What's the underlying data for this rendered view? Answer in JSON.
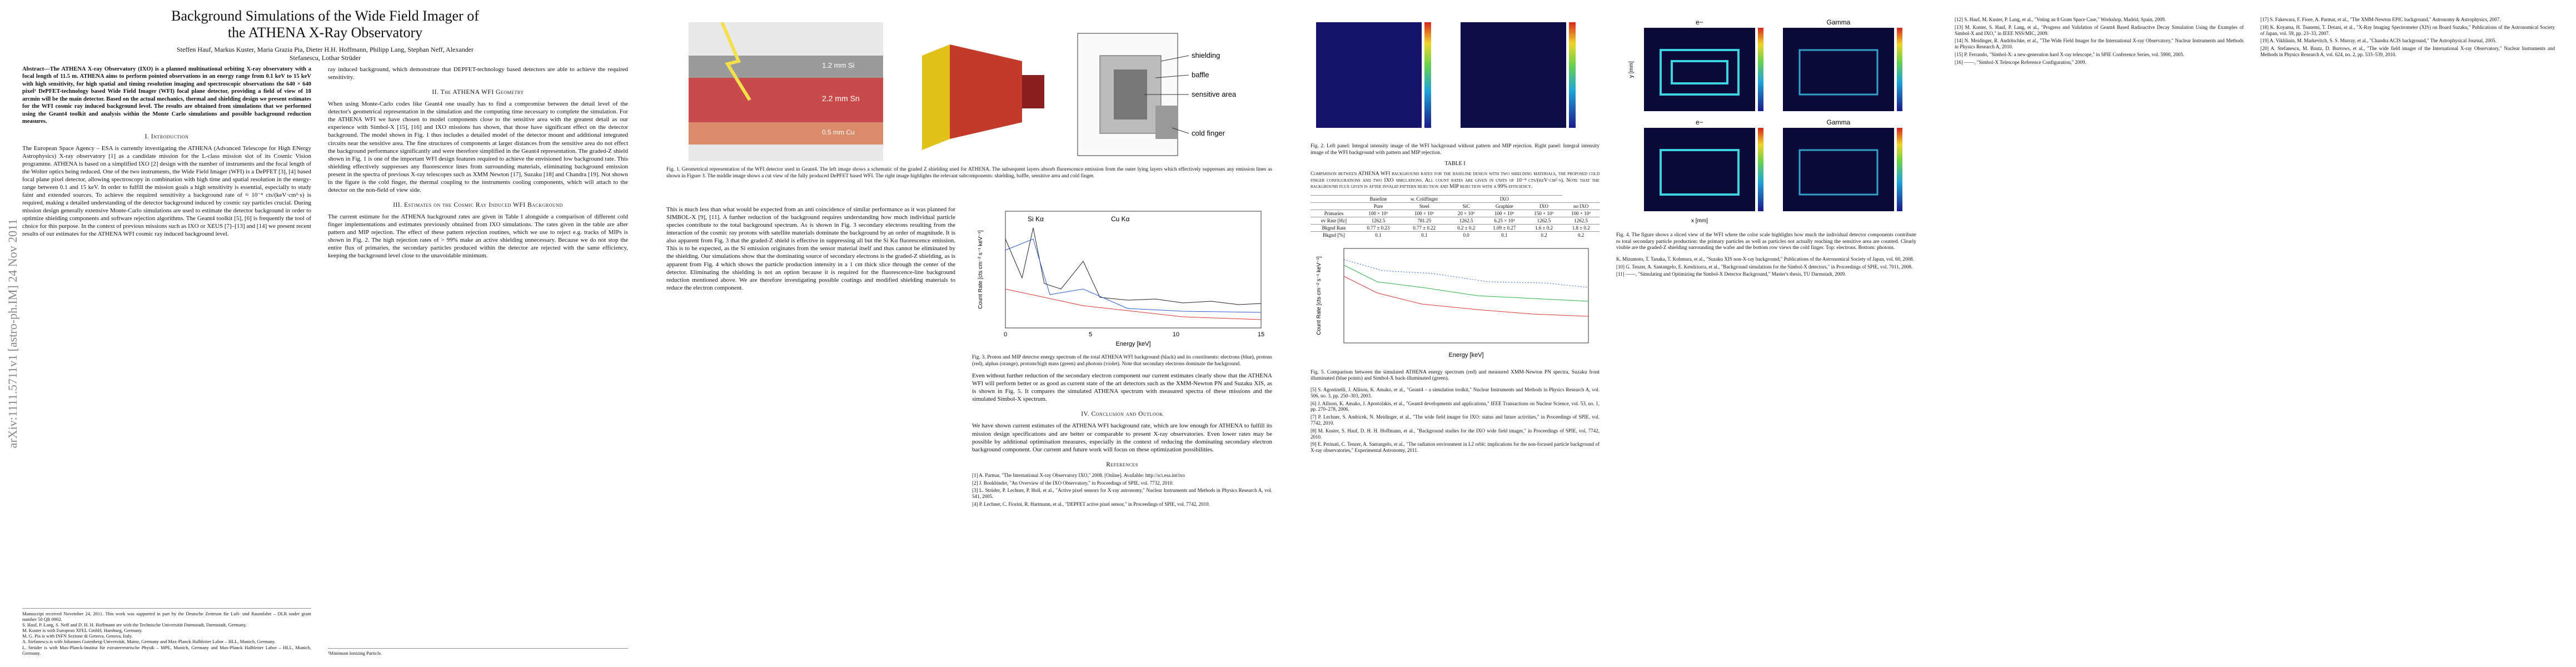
{
  "arxiv_id": "arXiv:1111.5711v1 [astro-ph.IM] 24 Nov 2011",
  "page1": {
    "title": "Background Simulations of the Wide Field Imager of the ATHENA X-Ray Observatory",
    "authors": "Steffen Hauf, Markus Kuster, Maria Grazia Pia, Dieter H.H. Hoffmann, Philipp Lang, Stephan Neff, Alexander Stefanescu, Lothar Strüder",
    "abstract": "Abstract—The ATHENA X-ray Observatory (IXO) is a planned multinational orbiting X-ray observatory with a focal length of 11.5 m. ATHENA aims to perform pointed observations in an energy range from 0.1 keV to 15 keV with high sensitivity, for high spatial and timing resolution imaging and spectroscopic observations the 640 × 640 pixel² DePFET-technology based Wide Field Imager (WFI) focal plane detector, providing a field of view of 18 arcmin will be the main detector. Based on the actual mechanics, thermal and shielding design we present estimates for the WFI cosmic ray induced background level. The results are obtained from simulations that we performed using the Geant4 toolkit and analysis within the Monte Carlo simulations and possible background reduction measures.",
    "intro_heading": "I. Introduction",
    "intro_text": "The European Space Agency – ESA is currently investigating the ATHENA (Advanced Telescope for High ENergy Astrophysics) X-ray observatory [1] as a candidate mission for the L-class mission slot of its Cosmic Vision programme. ATHENA is based on a simplified IXO [2] design with the number of instruments and the focal length of the Wolter optics being reduced. One of the two instruments, the Wide Field Imager (WFI) is a DePFET [3], [4] based focal plane pixel detector, allowing spectroscopy in combination with high time and spatial resolution in the energy-range between 0.1 and 15 keV. In order to fulfill the mission goals a high sensitivity is essential, especially to study faint and extended sources. To achieve the required sensitivity a background rate of ≈ 10⁻⁴ cts/(keV·cm²·s) is required, making a detailed understanding of the detector background induced by cosmic ray particles crucial. During mission design generally extensive Monte-Carlo simulations are used to estimate the detector background in order to optimize shielding components and software rejection algorithms. The Geant4 toolkit [5], [6] is frequently the tool of choice for this purpose. In the context of previous missions such as IXO or XEUS [7]–[13] and [14] we present recent results of our estimates for the ATHENA WFI cosmic ray induced background level.",
    "footnotes": [
      "Manuscript received November 24, 2011. This work was supported in part by the Deutsche Zentrum für Luft- und Raumfahrt – DLR under grant number 50 QR 0902.",
      "S. Hauf, P. Lang, S. Neff and D. H. H. Hoffmann are with the Technische Universität Darmstadt, Darmstadt, Germany.",
      "M. Kuster is with European XFEL GmbH, Hamburg, Germany.",
      "M. G. Pia is with INFN Sezione di Genova, Genova, Italy.",
      "A. Stefanescu is with Johannes Gutenberg-Universität, Mainz, Germany and Max-Planck Halbleiter Labor – HLL, Munich, Germany.",
      "L. Strüder is with Max-Planck-Institut für extraterrestrische Physik – MPE, Munich, Germany and Max-Planck Halbleiter Labor – HLL, Munich, Germany."
    ],
    "col2_text": "ray induced background, which demonstrate that DEPFET-technology based detectors are able to achieve the required sensitivity.",
    "section2_heading": "II. The ATHENA WFI Geometry",
    "section2_text": "When using Monte-Carlo codes like Geant4 one usually has to find a compromise between the detail level of the detector's geometrical representation in the simulation and the computing time necessary to complete the simulation. For the ATHENA WFI we have chosen to model components close to the sensitive area with the greatest detail as our experience with Simbol-X [15], [16] and IXO missions has shown, that those have significant effect on the detector background. The model shown in Fig. 1 thus includes a detailed model of the detector mount and additional integrated circuits near the sensitive area. The fine structures of components at larger distances from the sensitive area do not effect the background performance significantly and were therefore simplified in the Geant4 representation. The graded-Z shield shown in Fig. 1 is one of the important WFI design features required to achieve the envisioned low background rate. This shielding effectively suppresses any fluorescence lines from surrounding materials, eliminating background emission present in the spectra of previous X-ray telescopes such as XMM Newton [17], Suzaku [18] and Chandra [19]. Not shown in the figure is the cold finger, the thermal coupling to the instruments cooling components, which will attach to the detector on the non-field of view side.",
    "section3_heading": "III. Estimates on the Cosmic Ray Induced WFI Background",
    "section3_text": "The current estimate for the ATHENA background rates are given in Table I alongside a comparison of different cold finger implementations and estimates previously obtained from IXO simulations. The rates given in the table are after pattern and MIP rejection. The effect of these pattern rejection routines, which we use to reject e.g. tracks of MIPs is shown in Fig. 2. The high rejection rates of > 99% make an active shielding unnecessary. Because we do not stop the entire flux of primaries, the secondary particles produced within the detector are rejected with the same efficiency, keeping the background level close to the unavoidable minimum.",
    "footnote_mark": "¹Minimum Ionizing Particle."
  },
  "page2": {
    "fig1_labels": [
      "1.2 mm Si",
      "2.2 mm Sn",
      "0.5 mm Cu",
      "shielding",
      "baffle",
      "sensitive area",
      "cold finger"
    ],
    "fig1_caption": "Fig. 1. Geometrical representation of the WFI detector used in Geant4. The left image shows a schematic of the graded Z shielding used for ATHENA. The subsequent layers absorb fluorescence emission from the outer lying layers which effectively suppresses any emission lines as shown in Figure 3. The middle image shows a cut view of the fully produced DePFET based WFI. The right image highlights the relevant subcomponents: shielding, baffle, sensitive area and cold finger.",
    "left_text": "This is much less than what would be expected from an anti coincidence of similar performance as it was planned for SIMBOL-X [9], [11]. A further reduction of the background requires understanding how much individual particle species contribute to the total background spectrum. As is shown in Fig. 3 secondary electrons resulting from the interaction of the cosmic ray protons with satellite materials dominate the background by an order of magnitude. It is also apparent from Fig. 3 that the graded-Z shield is effective in suppressing all but the Si Kα fluorescence emission. This is to be expected, as the Si emission originates from the sensor material itself and thus cannot be eliminated by the shielding. Our simulations show that the dominating source of secondary electrons is the graded-Z shielding, as is apparent from Fig. 4 which shows the particle production intensity in a 1 cm thick slice through the center of the detector. Eliminating the shielding is not an option because it is required for the fluorescence-line background reduction mentioned above. We are therefore investigating possible coatings and modified shielding materials to reduce the electron component.",
    "fig3_annotations": [
      "Si Kα",
      "Cu Kα"
    ],
    "fig3_ylabel": "Count Rate [cts cm⁻² s⁻¹ keV⁻¹]",
    "fig3_xlabel": "Energy [keV]",
    "fig3_xticks": [
      "0",
      "5",
      "10",
      "15"
    ],
    "fig3_caption": "Fig. 3. Proton and MIP detector energy spectrum of the total ATHENA WFI background (black) and its constituents: electrons (blue), protons (red), alphas (orange), protons/high mass (green) and photons (violet). Note that secondary electrons dominate the background.",
    "right_text": "Even without further reduction of the secondary electron component our current estimates clearly show that the ATHENA WFI will perform better or as good as current state of the art detectors such as the XMM-Newton PN and Suzaku XIS, as is shown in Fig. 5. It compares the simulated ATHENA spectrum with measured spectra of these missions and the simulated Simbol-X spectrum.",
    "conclusion_heading": "IV. Conclusion and Outlook",
    "conclusion_text": "We have shown current estimates of the ATHENA WFI background rate, which are low enough for ATHENA to fulfill its mission design specifications and are better or comparable to present X-ray observatories. Even lower rates may be possible by additional optimisation measures, especially in the context of reducing the dominating secondary electron background component. Our current and future work will focus on these optimization possibilities.",
    "references_heading": "References",
    "references": [
      "[1] A. Parmar, \"The International X-ray Observatory IXO,\" 2008. [Online]. Available: http://sci.esa.int/ixo",
      "[2] J. Bookbinder, \"An Overview of the IXO Observatory,\" in Proceedings of SPIE, vol. 7732, 2010.",
      "[3] L. Strüder, P. Lechner, P. Holl, et al., \"Active pixel sensors for X-ray astronomy,\" Nuclear Instruments and Methods in Physics Research A, vol. 541, 2005.",
      "[4] P. Lechner, C. Fiorini, R. Hartmann, et al., \"DEPFET active pixel sensor,\" in Proceedings of SPIE, vol. 7742, 2010."
    ]
  },
  "page3": {
    "fig2_caption": "Fig. 2. Left panel: Integral intensity image of the WFI background without pattern and MIP rejection. Right panel: Integral intensity image of the WFI background with pattern and MIP rejection.",
    "table_title": "TABLE I",
    "table_caption": "Comparison between ATHENA WFI background rates for the baseline design with two shielding materials, the proposed cold finger configurations and two IXO simulations. All count rates are given in units of 10⁻⁴ cts/(keV·cm²·s). Note that the background flux given is after invalid pattern rejection and MIP rejection with a 99% efficiency.",
    "table": {
      "header": [
        "",
        "Baseline",
        "w. Coldfinger",
        "",
        "IXO",
        ""
      ],
      "subheader": [
        "",
        "Pure",
        "Steel",
        "SiC",
        "Graphite",
        "IXO",
        "no IXO"
      ],
      "rows": [
        [
          "Primaries",
          "100 × 10⁶",
          "100 × 10⁶",
          "20 × 10⁶",
          "100 × 10⁶",
          "150 × 10⁶",
          "100 × 10⁶"
        ],
        [
          "ev Rate [Hz]",
          "1262.5",
          "781.25",
          "1262.5",
          "6.25 × 10³",
          "1262.5",
          "1262.5"
        ],
        [
          "Bkgnd Rate",
          "0.77 ± 0.23",
          "0.77 ± 0.22",
          "0.2 ± 0.2",
          "1.09 ± 0.27",
          "1.6 ± 0.2",
          "1.8 ± 0.2"
        ],
        [
          "Bkgnd [%]",
          "0.1",
          "0.1",
          "0.0",
          "0.1",
          "0.2",
          "0.2"
        ]
      ]
    },
    "fig5_ylabel": "Count Rate [cts cm⁻² s⁻¹ keV⁻¹]",
    "fig5_xlabel": "Energy [keV]",
    "fig5_caption": "Fig. 5. Comparison between the simulated ATHENA energy spectrum (red) and measured XMM-Newton PN spectra, Suzaku front illuminated (blue points) and Simbol-X back-illuminated (green).",
    "references_left": [
      "[5] S. Agostinelli, J. Allison, K. Amako, et al., \"Geant4 – a simulation toolkit,\" Nuclear Instruments and Methods in Physics Research A, vol. 506, no. 3, pp. 250–303, 2003.",
      "[6] J. Allison, K. Amako, J. Apostolakis, et al., \"Geant4 developments and applications,\" IEEE Transactions on Nuclear Science, vol. 53, no. 1, pp. 270–278, 2006.",
      "[7] P. Lechner, S. Andricek, N. Meidinger, et al., \"The wide field imager for IXO: status and future activities,\" in Proceedings of SPIE, vol. 7742, 2010.",
      "[8] M. Kuster, S. Hauf, D. H. H. Hoffmann, et al., \"Background studies for the IXO wide field imager,\" in Proceedings of SPIE, vol. 7742, 2010.",
      "[9] E. Perinati, C. Tenzer, A. Santangelo, et al., \"The radiation environment in L2 orbit: implications for the non-focused particle background of X-ray observatories,\" Experimental Astronomy, 2011."
    ],
    "fig4_labels": [
      "e−",
      "Gamma",
      "e−",
      "Gamma"
    ],
    "fig4_xlabel": "x [mm]",
    "fig4_ylabel": "y [mm]",
    "fig4_caption": "Fig. 4. The figure shows a sliced view of the WFI where the color scale highlights how much the individual detector components contribute to total secondary particle production: the primary particles as well as particles not actually reaching the sensitive area are counted. Clearly visible are the graded-Z shielding surrounding the wafer and the bottom row views the cold finger. Top: electrons. Bottom: photons.",
    "references_right": [
      "K. Mizumoto, T. Tanaka, T. Kohmura, et al., \"Suzaku XIS non-X-ray background,\" Publications of the Astronomical Society of Japan, vol. 60, 2008.",
      "[10] G. Tenzer, A. Santangelo, E. Kendziorra, et al., \"Background simulations for the Simbol-X detectors,\" in Proceedings of SPIE, vol. 7011, 2008.",
      "[11] ——, \"Simulating and Optimizing the Simbol-X Detector Background,\" Master's thesis, TU Darmstadt, 2009."
    ]
  },
  "page4": {
    "references_left": [
      "[12] S. Hauf, M. Kuster, P. Lang, et al., \"Voting an 8 Gram Space Case,\" Workshop, Madrid, Spain, 2009.",
      "[13] M. Kuster, S. Hauf, P. Lang, et al., \"Progress and Validation of Geant4 Based Radioactive Decay Simulation Using the Examples of Simbol-X and IXO,\" in IEEE NSS/MIC, 2009.",
      "[14] N. Meidinger, R. Andritschke, et al., \"The Wide Field Imager for the International X-ray Observatory,\" Nuclear Instruments and Methods in Physics Research A, 2010.",
      "[15] P. Ferrando, \"Simbol-X: a new-generation hard X-ray telescope,\" in SPIE Conference Series, vol. 5900, 2005.",
      "[16] ——, \"Simbol-X Telescope Reference Configuration,\" 2009."
    ],
    "references_right": [
      "[17] S. Fakewara, F. Fiore, A. Parmar, et al., \"The XMM-Newton EPIC background,\" Astronomy & Astrophysics, 2007.",
      "[18] K. Koyama, H. Tsunemi, T. Dotani, et al., \"X-Ray Imaging Spectrometer (XIS) on Board Suzaku,\" Publications of the Astronomical Society of Japan, vol. 59, pp. 23–33, 2007.",
      "[19] A. Vikhlinin, M. Markevitch, S. S. Murray, et al., \"Chandra ACIS background,\" The Astrophysical Journal, 2005.",
      "[20] A. Stefanescu, M. Bautz, D. Burrows, et al., \"The wide field imager of the International X-ray Observatory,\" Nuclear Instruments and Methods in Physics Research A, vol. 624, no. 2, pp. 533–539, 2010."
    ]
  }
}
